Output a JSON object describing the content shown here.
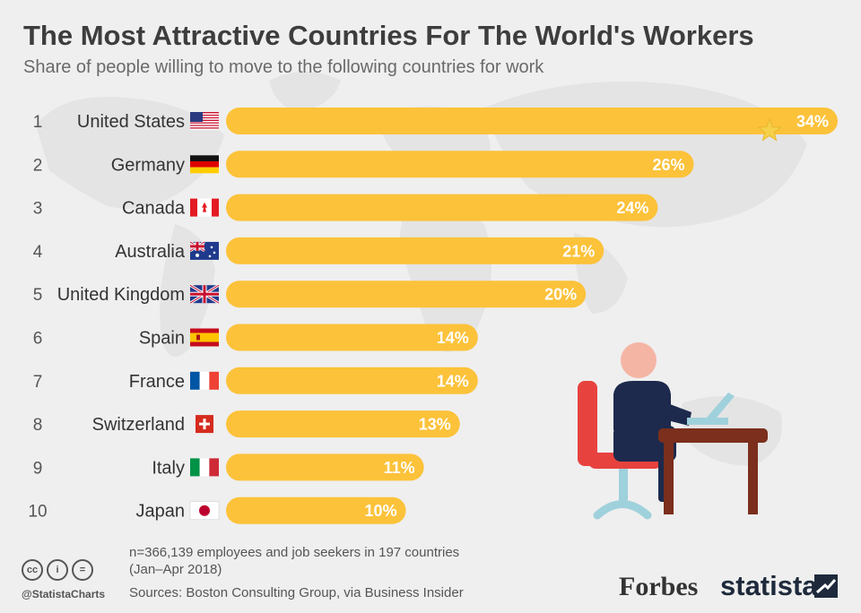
{
  "header": {
    "title": "The Most Attractive Countries For The World's Workers",
    "subtitle": "Share of people willing to move to the following countries for work"
  },
  "chart_data": {
    "type": "bar",
    "orientation": "horizontal",
    "title": "The Most Attractive Countries For The World's Workers",
    "subtitle": "Share of people willing to move to the following countries for work",
    "xlim": [
      0,
      34
    ],
    "grid": false,
    "bar_color": "#fcc23a",
    "value_label_color": "#ffffff",
    "ranks": [
      "1",
      "2",
      "3",
      "4",
      "5",
      "6",
      "7",
      "8",
      "9",
      "10"
    ],
    "categories": [
      "United States",
      "Germany",
      "Canada",
      "Australia",
      "United Kingdom",
      "Spain",
      "France",
      "Switzerland",
      "Italy",
      "Japan"
    ],
    "values": [
      34,
      26,
      24,
      21,
      20,
      14,
      14,
      13,
      11,
      10
    ],
    "value_labels": [
      "34%",
      "26%",
      "24%",
      "21%",
      "20%",
      "14%",
      "14%",
      "13%",
      "11%",
      "10%"
    ],
    "flag_icons": [
      "flag-us-icon",
      "flag-de-icon",
      "flag-ca-icon",
      "flag-au-icon",
      "flag-gb-icon",
      "flag-es-icon",
      "flag-fr-icon",
      "flag-ch-icon",
      "flag-it-icon",
      "flag-jp-icon"
    ]
  },
  "footer": {
    "note_line1": "n=366,139 employees and job seekers in 197 countries",
    "note_line2": "(Jan–Apr 2018)",
    "source": "Sources: Boston Consulting Group, via Business Insider",
    "handle": "@StatistaCharts",
    "cc_icons": [
      "cc",
      "by",
      "nd"
    ],
    "cc_glyphs": [
      "cc",
      "i",
      "="
    ]
  },
  "logos": {
    "forbes": "Forbes",
    "statista": "statista"
  }
}
